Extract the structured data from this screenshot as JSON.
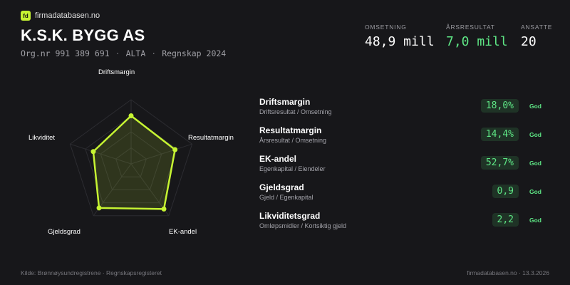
{
  "brand": {
    "logo_text": "fd",
    "name": "firmadatabasen.no"
  },
  "company": {
    "name": "K.S.K. BYGG AS",
    "orgnr": "Org.nr 991 389 691",
    "location": "ALTA",
    "report": "Regnskap 2024",
    "separator": "·"
  },
  "kpis": [
    {
      "label": "OMSETNING",
      "value": "48,9 mill"
    },
    {
      "label": "ÅRSRESULTAT",
      "value": "7,0 mill",
      "color": "#5ee685"
    },
    {
      "label": "ANSATTE",
      "value": "20"
    }
  ],
  "chart_data": {
    "type": "radar",
    "axes": [
      "Driftsmargin",
      "Resultatmargin",
      "EK-andel",
      "Gjeldsgrad",
      "Likviditet"
    ],
    "normalized_scores": [
      0.75,
      0.72,
      0.87,
      0.85,
      0.62
    ],
    "rings": 4,
    "line_color": "#c6f432",
    "fill_color": "#c6f432"
  },
  "metrics": [
    {
      "name": "Driftsmargin",
      "desc": "Driftsresultat / Omsetning",
      "value": "18,0%",
      "status": "God"
    },
    {
      "name": "Resultatmargin",
      "desc": "Årsresultat / Omsetning",
      "value": "14,4%",
      "status": "God"
    },
    {
      "name": "EK-andel",
      "desc": "Egenkapital / Eiendeler",
      "value": "52,7%",
      "status": "God"
    },
    {
      "name": "Gjeldsgrad",
      "desc": "Gjeld / Egenkapital",
      "value": "0,9",
      "status": "God"
    },
    {
      "name": "Likviditetsgrad",
      "desc": "Omløpsmidler / Kortsiktig gjeld",
      "value": "2,2",
      "status": "God"
    }
  ],
  "footer": {
    "source": "Kilde: Brønnøysundregistrene · Regnskapsregisteret",
    "site_date": "firmadatabasen.no · 13.3.2026"
  },
  "colors": {
    "background": "#17171a",
    "accent": "#c6f432",
    "good": "#5ee685"
  }
}
